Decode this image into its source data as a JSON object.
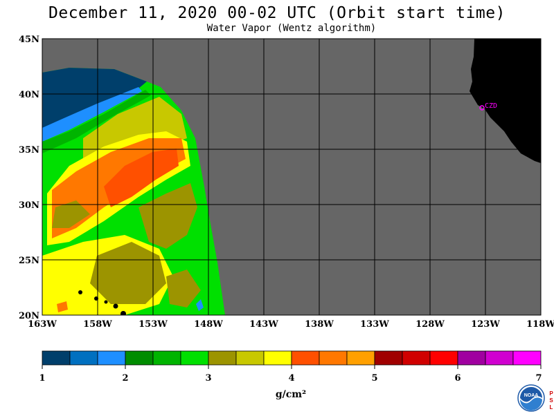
{
  "title": "December 11, 2020  00-02 UTC  (Orbit start time)",
  "subtitle": "Water Vapor (Wentz algorithm)",
  "lat_labels": [
    "45N",
    "40N",
    "35N",
    "30N",
    "25N",
    "20N"
  ],
  "lon_labels": [
    "163W",
    "158W",
    "153W",
    "148W",
    "143W",
    "138W",
    "133W",
    "128W",
    "123W",
    "118W"
  ],
  "station": "CZD",
  "colorbar": {
    "ticks": [
      "1",
      "2",
      "3",
      "4",
      "5",
      "6",
      "7"
    ],
    "unit": "g/cm²",
    "colors": [
      "#003f6b",
      "#0070c0",
      "#1e8fff",
      "#008c00",
      "#00b400",
      "#00e000",
      "#9c9400",
      "#c8c800",
      "#ffff00",
      "#ff5000",
      "#ff7800",
      "#ffa000",
      "#a00000",
      "#d00000",
      "#ff0000",
      "#a000a0",
      "#d000d0",
      "#ff00ff"
    ]
  },
  "colors": {
    "land": "#000000",
    "no_data": "#666666",
    "grid": "#000000",
    "station": "#ff00ff"
  },
  "logo_text": "NOAA",
  "side_text": "PSL"
}
